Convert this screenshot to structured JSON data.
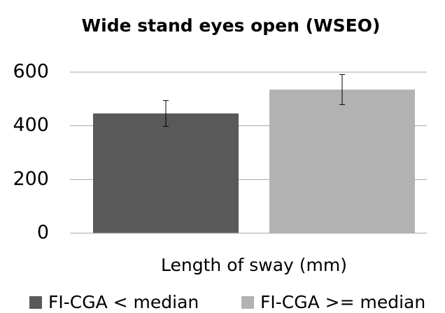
{
  "chart_data": {
    "type": "bar",
    "title": "Wide stand eyes open (WSEO)",
    "categories": [
      "Length of sway (mm)"
    ],
    "series": [
      {
        "name": "FI-CGA < median",
        "color": "#595959",
        "values": [
          446
        ],
        "errors": [
          48
        ]
      },
      {
        "name": "FI-CGA >= median",
        "color": "#b2b2b2",
        "values": [
          535
        ],
        "errors": [
          56
        ]
      }
    ],
    "ylim": [
      0,
      600
    ],
    "yticks": [
      0,
      200,
      400,
      600
    ],
    "grid": true,
    "legend": "bottom"
  }
}
